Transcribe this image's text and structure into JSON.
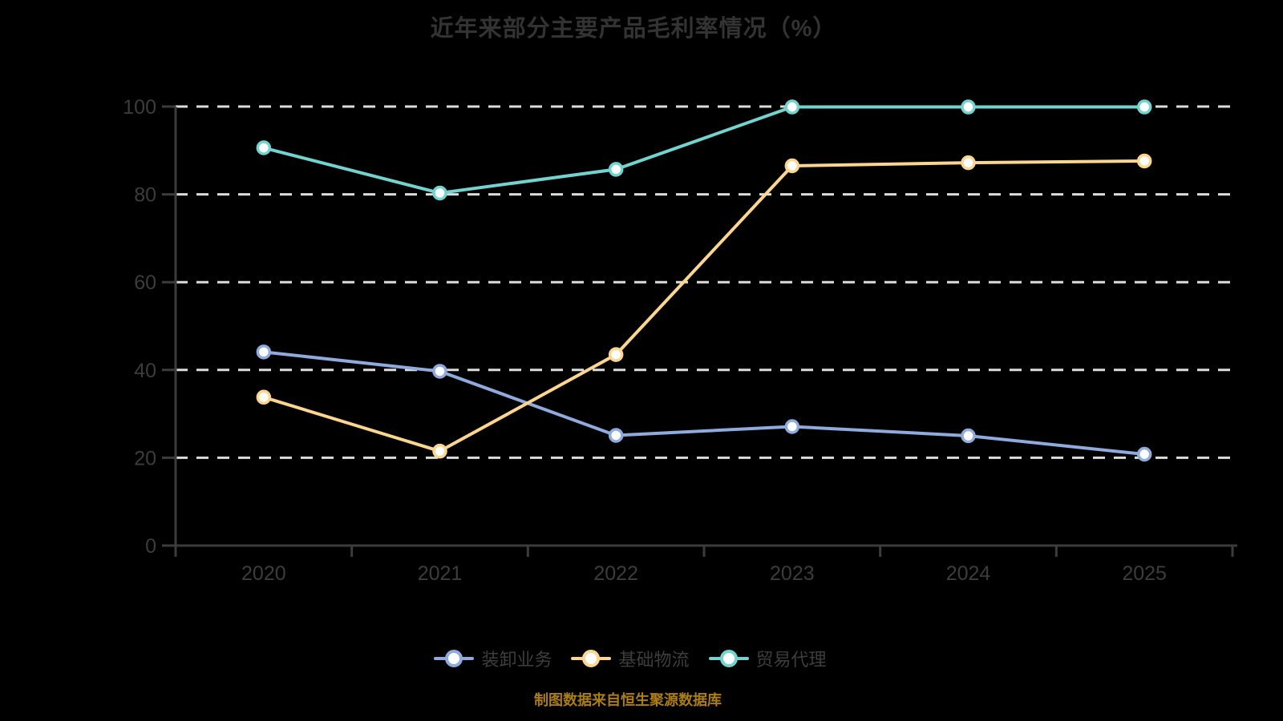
{
  "chart_data": {
    "type": "line",
    "title": "近年来部分主要产品毛利率情况（%）",
    "x": [
      "2020",
      "2021",
      "2022",
      "2023",
      "2024",
      "2025"
    ],
    "series": [
      {
        "name": "装卸业务",
        "color": "#8faadc",
        "values": [
          44.1,
          39.7,
          25.1,
          27.1,
          25.0,
          20.8
        ]
      },
      {
        "name": "基础物流",
        "color": "#fcd690",
        "values": [
          33.8,
          21.5,
          43.5,
          86.5,
          87.2,
          87.6
        ]
      },
      {
        "name": "贸易代理",
        "color": "#73d3ce",
        "values": [
          90.6,
          80.3,
          85.7,
          99.9,
          99.9,
          99.9
        ]
      }
    ],
    "ylim": [
      0,
      100
    ],
    "yticks": [
      0,
      20,
      40,
      60,
      80,
      100
    ],
    "grid": "horizontal-dashed",
    "legend_position": "bottom",
    "marker": "circle-white-fill"
  },
  "footer": {
    "source_note": "制图数据来自恒生聚源数据库"
  },
  "colors": {
    "background": "#000000",
    "title_text": "#333333",
    "axis_text": "#3c3c3c",
    "axis_line": "#3c3c3c",
    "gridline": "#dcdcdc",
    "footer_text": "#ab7e15",
    "marker_fill": "#ffffff"
  }
}
